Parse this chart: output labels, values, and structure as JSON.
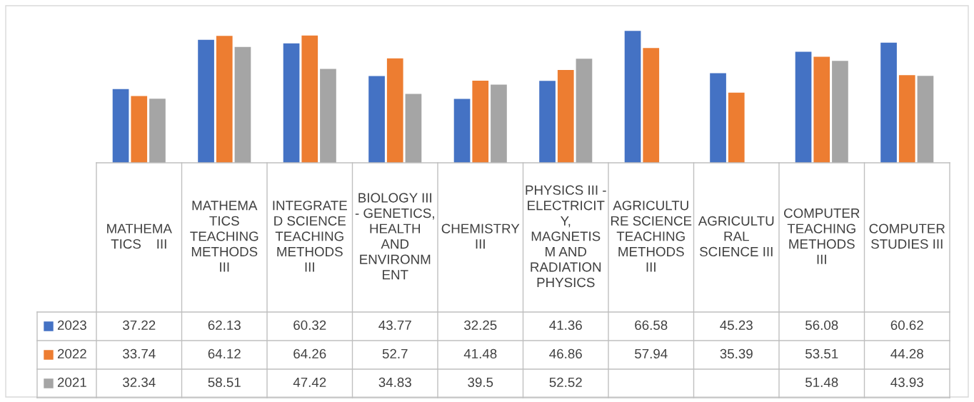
{
  "chart_data": {
    "type": "bar",
    "categories": [
      "MATHEMA\nTICS    III",
      "MATHEMA\nTICS\nTEACHING\nMETHODS\nIII",
      "INTEGRATE\nD SCIENCE\nTEACHING\nMETHODS\nIII",
      "BIOLOGY III\n- GENETICS,\nHEALTH\nAND\nENVIRONM\nENT",
      "CHEMISTRY\nIII",
      "PHYSICS III -\nELECTRICIT\nY,\nMAGNETIS\nM AND\nRADIATION\nPHYSICS",
      "AGRICULTU\nRE SCIENCE\nTEACHING\nMETHODS\nIII",
      "AGRICULTU\nRAL\nSCIENCE III",
      "COMPUTER\nTEACHING\nMETHODS\nIII",
      "COMPUTER\nSTUDIES III"
    ],
    "series": [
      {
        "name": "2023",
        "color": "#4472c4",
        "values": [
          37.22,
          62.13,
          60.32,
          43.77,
          32.25,
          41.36,
          66.58,
          45.23,
          56.08,
          60.62
        ]
      },
      {
        "name": "2022",
        "color": "#ed7d31",
        "values": [
          33.74,
          64.12,
          64.26,
          52.7,
          41.48,
          46.86,
          57.94,
          35.39,
          53.51,
          44.28
        ]
      },
      {
        "name": "2021",
        "color": "#a5a5a5",
        "values": [
          32.34,
          58.51,
          47.42,
          34.83,
          39.5,
          52.52,
          null,
          null,
          51.48,
          43.93
        ]
      }
    ],
    "data_labels": true,
    "legend": "bottom left"
  }
}
